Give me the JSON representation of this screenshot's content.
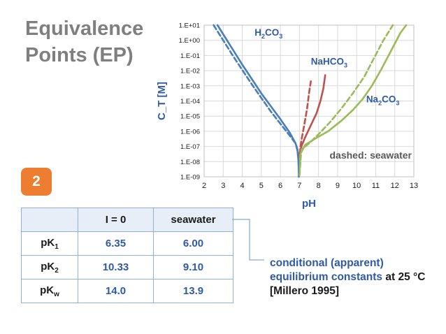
{
  "title": {
    "line1": "Equivalence",
    "line2": "Points (EP)"
  },
  "badge": "2",
  "table": {
    "headers": [
      "",
      "I = 0",
      "seawater"
    ],
    "rows": [
      {
        "label": "pK",
        "sub": "1",
        "i0": "6.35",
        "sw": "6.00"
      },
      {
        "label": "pK",
        "sub": "2",
        "i0": "10.33",
        "sw": "9.10"
      },
      {
        "label": "pK",
        "sub": "w",
        "i0": "14.0",
        "sw": "13.9"
      }
    ]
  },
  "note": {
    "line1": "conditional (apparent)",
    "line2a": "equilibrium constants",
    "line2b": " at 25 °C",
    "line3": "[Millero 1995]"
  },
  "colors": {
    "blue": "#4a7ebb",
    "red": "#c0504d",
    "green": "#9bbb59",
    "title_gray": "#7f7f7f",
    "badge_orange": "#ed7d31",
    "text_blue": "#2e5aa8"
  },
  "chart_data": {
    "type": "line",
    "xlabel": "pH",
    "ylabel": "C_T [M]",
    "xlim": [
      2,
      13
    ],
    "ylim_log10": [
      -9,
      1
    ],
    "x_ticks": [
      "2",
      "3",
      "4",
      "5",
      "6",
      "7",
      "8",
      "9",
      "10",
      "11",
      "12",
      "13"
    ],
    "y_ticks": [
      "1.E-09",
      "1.E-08",
      "1.E-07",
      "1.E-06",
      "1.E-05",
      "1.E-04",
      "1.E-03",
      "1.E-02",
      "1.E-01",
      "1.E+00",
      "1.E+01"
    ],
    "grid": true,
    "annotation": "dashed: seawater",
    "labels": [
      {
        "text": "H",
        "sub": "2",
        "text2": "CO",
        "sub2": "3",
        "x": 4.65,
        "y_log": 0.3,
        "color": "blue"
      },
      {
        "text": "NaHCO",
        "sub": "3",
        "text2": "",
        "sub2": "",
        "x": 7.6,
        "y_log": -1.6,
        "color": "red"
      },
      {
        "text": "Na",
        "sub": "2",
        "text2": "CO",
        "sub2": "3",
        "x": 10.5,
        "y_log": -4.1,
        "color": "green"
      }
    ],
    "series": [
      {
        "name": "H2CO3",
        "color": "blue",
        "dashed": false,
        "points": [
          [
            2.7,
            1
          ],
          [
            3,
            0.4
          ],
          [
            3.5,
            -0.6
          ],
          [
            4,
            -1.6
          ],
          [
            4.5,
            -2.55
          ],
          [
            5,
            -3.5
          ],
          [
            5.5,
            -4.35
          ],
          [
            6,
            -5.2
          ],
          [
            6.5,
            -6.1
          ],
          [
            6.8,
            -6.8
          ],
          [
            6.9,
            -7.3
          ],
          [
            6.95,
            -8.0
          ],
          [
            6.97,
            -9
          ]
        ]
      },
      {
        "name": "H2CO3 seawater",
        "color": "blue",
        "dashed": true,
        "points": [
          [
            2.5,
            1
          ],
          [
            3,
            0
          ],
          [
            3.5,
            -1
          ],
          [
            4,
            -1.95
          ],
          [
            4.5,
            -2.9
          ],
          [
            5,
            -3.8
          ],
          [
            5.5,
            -4.7
          ],
          [
            6,
            -5.5
          ],
          [
            6.5,
            -6.3
          ],
          [
            6.8,
            -6.8
          ],
          [
            6.9,
            -7.2
          ],
          [
            6.95,
            -7.9
          ],
          [
            6.97,
            -9
          ]
        ]
      },
      {
        "name": "NaHCO3",
        "color": "red",
        "dashed": false,
        "points": [
          [
            7,
            -7.7
          ],
          [
            7.1,
            -7.0
          ],
          [
            7.3,
            -6.4
          ],
          [
            7.6,
            -5.6
          ],
          [
            7.9,
            -4.8
          ],
          [
            8.1,
            -4.0
          ],
          [
            8.25,
            -3.2
          ],
          [
            8.35,
            -2.3
          ]
        ]
      },
      {
        "name": "NaHCO3 seawater",
        "color": "red",
        "dashed": true,
        "points": [
          [
            7,
            -7.5
          ],
          [
            7.1,
            -6.6
          ],
          [
            7.25,
            -5.6
          ],
          [
            7.4,
            -4.5
          ],
          [
            7.5,
            -3.5
          ],
          [
            7.6,
            -2.7
          ]
        ]
      },
      {
        "name": "Na2CO3",
        "color": "green",
        "dashed": false,
        "points": [
          [
            7,
            -8.9
          ],
          [
            7.05,
            -7.5
          ],
          [
            7.3,
            -6.9
          ],
          [
            7.8,
            -6.5
          ],
          [
            8.5,
            -6.0
          ],
          [
            9.2,
            -5.3
          ],
          [
            9.8,
            -4.6
          ],
          [
            10.3,
            -3.9
          ],
          [
            10.8,
            -3.0
          ],
          [
            11.3,
            -1.9
          ],
          [
            11.8,
            -0.7
          ],
          [
            12.3,
            0.5
          ],
          [
            12.6,
            1
          ]
        ]
      },
      {
        "name": "Na2CO3 seawater",
        "color": "green",
        "dashed": true,
        "points": [
          [
            7,
            -8.9
          ],
          [
            7.1,
            -7.2
          ],
          [
            7.5,
            -6.8
          ],
          [
            8,
            -6.2
          ],
          [
            8.6,
            -5.4
          ],
          [
            9.2,
            -4.5
          ],
          [
            9.8,
            -3.5
          ],
          [
            10.4,
            -2.4
          ],
          [
            10.9,
            -1.2
          ],
          [
            11.4,
            0
          ],
          [
            11.9,
            1
          ]
        ]
      }
    ]
  }
}
